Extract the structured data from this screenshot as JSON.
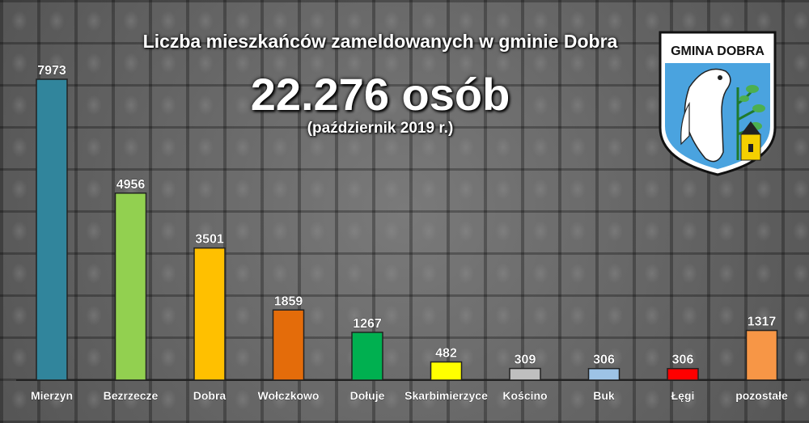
{
  "title": "Liczba mieszkańców zameldowanych w gminie Dobra",
  "total": "22.276 osób",
  "date": "(październik 2019 r.)",
  "crest": {
    "label": "GMINA DOBRA",
    "icon": "gmina-dobra-crest-icon"
  },
  "chart_data": {
    "type": "bar",
    "title": "Liczba mieszkańców zameldowanych w gminie Dobra",
    "categories": [
      "Mierzyn",
      "Bezrzecze",
      "Dobra",
      "Wołczkowo",
      "Dołuje",
      "Skarbimierzyce",
      "Kościno",
      "Buk",
      "Łęgi",
      "pozostałe"
    ],
    "values": [
      7973,
      4956,
      3501,
      1859,
      1267,
      482,
      309,
      306,
      306,
      1317
    ],
    "data_labels": [
      "7973",
      "4956",
      "3501",
      "1859",
      "1267",
      "482",
      "309",
      "306",
      "306",
      "1317"
    ],
    "colors": [
      "#31859c",
      "#92d050",
      "#ffc000",
      "#e46c0a",
      "#00b050",
      "#ffff00",
      "#bfbfbf",
      "#9dc3e6",
      "#ff0000",
      "#f79646"
    ],
    "ylim": [
      0,
      7973
    ],
    "grid": false,
    "legend": "none"
  }
}
